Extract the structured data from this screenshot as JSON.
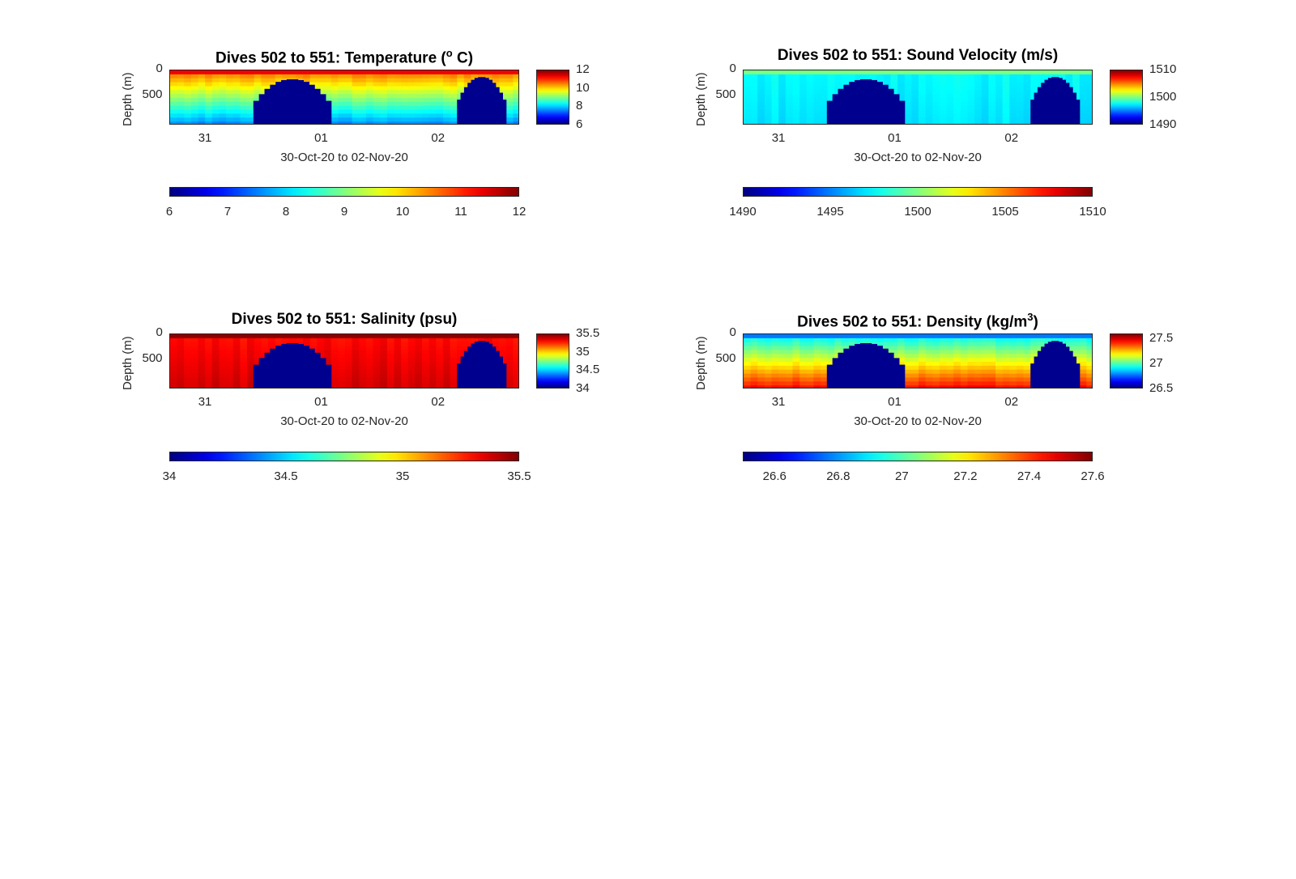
{
  "panels": [
    {
      "id": "temperature",
      "title": "Dives 502 to 551: Temperature (",
      "title_sup": "o",
      "title_post": " C)",
      "ylabel": "Depth (m)",
      "xlabel": "30-Oct-20 to 02-Nov-20",
      "yticks": [
        "0",
        "500"
      ],
      "xticks": [
        "31",
        "01",
        "02"
      ],
      "side_cbar_ticks": [
        "12",
        "10",
        "8",
        "6"
      ],
      "bottom_cbar_ticks": [
        "6",
        "7",
        "8",
        "9",
        "10",
        "11",
        "12"
      ],
      "range": [
        6,
        12
      ],
      "surface": 10.6,
      "bottom": 7.6
    },
    {
      "id": "sound-velocity",
      "title": "Dives 502 to 551: Sound Velocity (m/s)",
      "title_sup": "",
      "title_post": "",
      "ylabel": "Depth (m)",
      "xlabel": "30-Oct-20 to 02-Nov-20",
      "yticks": [
        "0",
        "500"
      ],
      "xticks": [
        "31",
        "01",
        "02"
      ],
      "side_cbar_ticks": [
        "1510",
        "1500",
        "1490"
      ],
      "bottom_cbar_ticks": [
        "1490",
        "1495",
        "1500",
        "1505",
        "1510"
      ],
      "range": [
        1490,
        1510
      ],
      "surface": 1497.5,
      "bottom": 1497.0
    },
    {
      "id": "salinity",
      "title": "Dives 502 to 551: Salinity (psu)",
      "title_sup": "",
      "title_post": "",
      "ylabel": "Depth (m)",
      "xlabel": "30-Oct-20 to 02-Nov-20",
      "yticks": [
        "0",
        "500"
      ],
      "xticks": [
        "31",
        "01",
        "02"
      ],
      "side_cbar_ticks": [
        "35.5",
        "35",
        "34.5",
        "34"
      ],
      "bottom_cbar_ticks": [
        "34",
        "34.5",
        "35",
        "35.5"
      ],
      "range": [
        34,
        35.5
      ],
      "surface": 35.3,
      "bottom": 35.38
    },
    {
      "id": "density",
      "title": "Dives 502 to 551: Density (kg/m",
      "title_sup": "3",
      "title_post": ")",
      "ylabel": "Depth (m)",
      "xlabel": "30-Oct-20 to 02-Nov-20",
      "yticks": [
        "0",
        "500"
      ],
      "xticks": [
        "31",
        "01",
        "02"
      ],
      "side_cbar_ticks": [
        "27.5",
        "27",
        "26.5"
      ],
      "bottom_cbar_ticks": [
        "26.6",
        "26.8",
        "27",
        "27.2",
        "27.4",
        "27.6"
      ],
      "range": [
        26.5,
        27.6
      ],
      "surface": 26.9,
      "bottom": 27.45
    }
  ],
  "chart_data": [
    {
      "type": "heatmap",
      "title": "Dives 502 to 551: Temperature (o C)",
      "xlabel": "30-Oct-20 to 02-Nov-20",
      "ylabel": "Depth (m)",
      "colorbar_range": [
        6,
        12
      ],
      "x_ticks": [
        "31",
        "01",
        "02"
      ],
      "y_ticks": [
        0,
        500
      ],
      "dives": "502 to 551",
      "near_surface_value": 10.6,
      "deep_value": 7.6
    },
    {
      "type": "heatmap",
      "title": "Dives 502 to 551: Sound Velocity (m/s)",
      "xlabel": "30-Oct-20 to 02-Nov-20",
      "ylabel": "Depth (m)",
      "colorbar_range": [
        1490,
        1510
      ],
      "x_ticks": [
        "31",
        "01",
        "02"
      ],
      "y_ticks": [
        0,
        500
      ],
      "dives": "502 to 551",
      "near_surface_value": 1497.5,
      "deep_value": 1497.0
    },
    {
      "type": "heatmap",
      "title": "Dives 502 to 551: Salinity (psu)",
      "xlabel": "30-Oct-20 to 02-Nov-20",
      "ylabel": "Depth (m)",
      "colorbar_range": [
        34,
        35.5
      ],
      "x_ticks": [
        "31",
        "01",
        "02"
      ],
      "y_ticks": [
        0,
        500
      ],
      "dives": "502 to 551",
      "near_surface_value": 35.3,
      "deep_value": 35.38
    },
    {
      "type": "heatmap",
      "title": "Dives 502 to 551: Density (kg/m3)",
      "xlabel": "30-Oct-20 to 02-Nov-20",
      "ylabel": "Depth (m)",
      "colorbar_range": [
        26.5,
        27.6
      ],
      "x_ticks": [
        "31",
        "01",
        "02"
      ],
      "y_ticks": [
        0,
        500
      ],
      "dives": "502 to 551",
      "near_surface_value": 26.9,
      "deep_value": 27.45
    }
  ]
}
